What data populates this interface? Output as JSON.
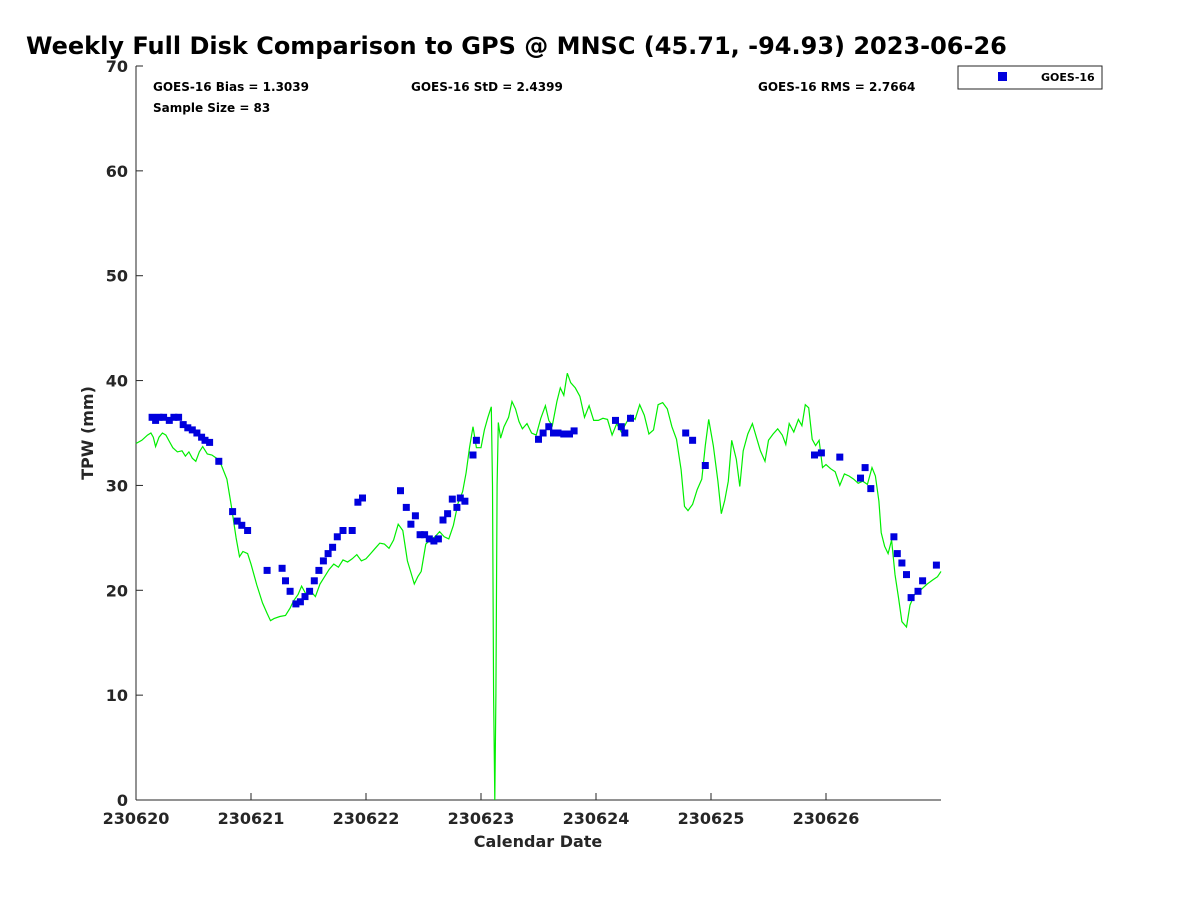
{
  "chart_data": {
    "type": "scatter",
    "title": "Weekly Full Disk Comparison to GPS @ MNSC (45.71, -94.93) 2023-06-26",
    "xlabel": "Calendar Date",
    "ylabel": "TPW (mm)",
    "xlim": [
      0,
      7
    ],
    "ylim": [
      0,
      70
    ],
    "x_ticks": [
      {
        "value": 0,
        "label": "230620"
      },
      {
        "value": 1,
        "label": "230621"
      },
      {
        "value": 2,
        "label": "230622"
      },
      {
        "value": 3,
        "label": "230623"
      },
      {
        "value": 4,
        "label": "230624"
      },
      {
        "value": 5,
        "label": "230625"
      },
      {
        "value": 6,
        "label": "230626"
      }
    ],
    "y_ticks": [
      0,
      10,
      20,
      30,
      40,
      50,
      60,
      70
    ],
    "grid": false,
    "legend": {
      "position": "top-right outside",
      "entries": [
        "GOES-16"
      ]
    },
    "stats": {
      "bias": "GOES-16 Bias = 1.3039",
      "std": "GOES-16 StD = 2.4399",
      "rms": "GOES-16 RMS = 2.7664",
      "sample": "Sample Size = 83"
    },
    "series": [
      {
        "name": "GOES-16",
        "kind": "scatter",
        "marker": "square",
        "color": "#0000dd",
        "points": [
          [
            0.14,
            36.5
          ],
          [
            0.17,
            36.2
          ],
          [
            0.2,
            36.5
          ],
          [
            0.24,
            36.5
          ],
          [
            0.29,
            36.2
          ],
          [
            0.33,
            36.5
          ],
          [
            0.37,
            36.5
          ],
          [
            0.41,
            35.8
          ],
          [
            0.45,
            35.5
          ],
          [
            0.49,
            35.3
          ],
          [
            0.53,
            35.0
          ],
          [
            0.57,
            34.6
          ],
          [
            0.6,
            34.3
          ],
          [
            0.64,
            34.1
          ],
          [
            0.72,
            32.3
          ],
          [
            0.84,
            27.5
          ],
          [
            0.88,
            26.6
          ],
          [
            0.92,
            26.2
          ],
          [
            0.97,
            25.7
          ],
          [
            1.14,
            21.9
          ],
          [
            1.27,
            22.1
          ],
          [
            1.3,
            20.9
          ],
          [
            1.34,
            19.9
          ],
          [
            1.39,
            18.7
          ],
          [
            1.43,
            18.9
          ],
          [
            1.47,
            19.4
          ],
          [
            1.51,
            19.9
          ],
          [
            1.55,
            20.9
          ],
          [
            1.59,
            21.9
          ],
          [
            1.63,
            22.8
          ],
          [
            1.67,
            23.5
          ],
          [
            1.71,
            24.1
          ],
          [
            1.75,
            25.1
          ],
          [
            1.8,
            25.7
          ],
          [
            1.88,
            25.7
          ],
          [
            1.93,
            28.4
          ],
          [
            1.97,
            28.8
          ],
          [
            2.3,
            29.5
          ],
          [
            2.35,
            27.9
          ],
          [
            2.39,
            26.3
          ],
          [
            2.43,
            27.1
          ],
          [
            2.47,
            25.3
          ],
          [
            2.51,
            25.3
          ],
          [
            2.55,
            24.9
          ],
          [
            2.59,
            24.7
          ],
          [
            2.63,
            24.9
          ],
          [
            2.67,
            26.7
          ],
          [
            2.71,
            27.3
          ],
          [
            2.75,
            28.7
          ],
          [
            2.79,
            27.9
          ],
          [
            2.82,
            28.8
          ],
          [
            2.86,
            28.5
          ],
          [
            2.93,
            32.9
          ],
          [
            2.96,
            34.3
          ],
          [
            3.5,
            34.4
          ],
          [
            3.54,
            35.0
          ],
          [
            3.59,
            35.6
          ],
          [
            3.63,
            35.0
          ],
          [
            3.67,
            35.0
          ],
          [
            3.72,
            34.9
          ],
          [
            3.77,
            34.9
          ],
          [
            3.81,
            35.2
          ],
          [
            4.17,
            36.2
          ],
          [
            4.22,
            35.6
          ],
          [
            4.25,
            35.0
          ],
          [
            4.3,
            36.4
          ],
          [
            4.78,
            35.0
          ],
          [
            4.84,
            34.3
          ],
          [
            4.95,
            31.9
          ],
          [
            5.9,
            32.9
          ],
          [
            5.96,
            33.1
          ],
          [
            6.12,
            32.7
          ],
          [
            6.3,
            30.7
          ],
          [
            6.34,
            31.7
          ],
          [
            6.39,
            29.7
          ],
          [
            6.59,
            25.1
          ],
          [
            6.62,
            23.5
          ],
          [
            6.66,
            22.6
          ],
          [
            6.7,
            21.5
          ],
          [
            6.74,
            19.3
          ],
          [
            6.8,
            19.9
          ],
          [
            6.84,
            20.9
          ],
          [
            6.96,
            22.4
          ]
        ]
      },
      {
        "name": "",
        "kind": "line",
        "color": "#00ee00",
        "points": [
          [
            0.0,
            34.0
          ],
          [
            0.05,
            34.3
          ],
          [
            0.1,
            34.8
          ],
          [
            0.13,
            35.0
          ],
          [
            0.15,
            34.6
          ],
          [
            0.17,
            33.7
          ],
          [
            0.2,
            34.6
          ],
          [
            0.23,
            35.0
          ],
          [
            0.26,
            34.8
          ],
          [
            0.29,
            34.2
          ],
          [
            0.32,
            33.6
          ],
          [
            0.36,
            33.2
          ],
          [
            0.4,
            33.3
          ],
          [
            0.43,
            32.8
          ],
          [
            0.46,
            33.2
          ],
          [
            0.49,
            32.6
          ],
          [
            0.52,
            32.3
          ],
          [
            0.55,
            33.2
          ],
          [
            0.58,
            33.7
          ],
          [
            0.62,
            33.0
          ],
          [
            0.66,
            32.9
          ],
          [
            0.7,
            32.6
          ],
          [
            0.74,
            32.0
          ],
          [
            0.79,
            30.6
          ],
          [
            0.83,
            28.0
          ],
          [
            0.87,
            25.0
          ],
          [
            0.9,
            23.2
          ],
          [
            0.93,
            23.7
          ],
          [
            0.97,
            23.5
          ],
          [
            1.0,
            22.5
          ],
          [
            1.05,
            20.5
          ],
          [
            1.1,
            18.8
          ],
          [
            1.14,
            17.8
          ],
          [
            1.17,
            17.1
          ],
          [
            1.2,
            17.3
          ],
          [
            1.25,
            17.5
          ],
          [
            1.3,
            17.6
          ],
          [
            1.34,
            18.3
          ],
          [
            1.37,
            19.0
          ],
          [
            1.41,
            19.6
          ],
          [
            1.44,
            20.4
          ],
          [
            1.48,
            19.6
          ],
          [
            1.52,
            19.9
          ],
          [
            1.56,
            19.4
          ],
          [
            1.6,
            20.6
          ],
          [
            1.64,
            21.3
          ],
          [
            1.68,
            22.0
          ],
          [
            1.72,
            22.5
          ],
          [
            1.76,
            22.2
          ],
          [
            1.8,
            22.9
          ],
          [
            1.84,
            22.7
          ],
          [
            1.88,
            23.0
          ],
          [
            1.92,
            23.4
          ],
          [
            1.96,
            22.8
          ],
          [
            2.0,
            23.0
          ],
          [
            2.04,
            23.5
          ],
          [
            2.08,
            24.0
          ],
          [
            2.12,
            24.5
          ],
          [
            2.16,
            24.4
          ],
          [
            2.2,
            24.0
          ],
          [
            2.24,
            24.8
          ],
          [
            2.28,
            26.3
          ],
          [
            2.32,
            25.7
          ],
          [
            2.36,
            22.8
          ],
          [
            2.39,
            21.7
          ],
          [
            2.42,
            20.6
          ],
          [
            2.45,
            21.3
          ],
          [
            2.48,
            21.8
          ],
          [
            2.52,
            24.4
          ],
          [
            2.56,
            24.8
          ],
          [
            2.6,
            25.1
          ],
          [
            2.64,
            25.6
          ],
          [
            2.68,
            25.1
          ],
          [
            2.72,
            24.9
          ],
          [
            2.76,
            26.2
          ],
          [
            2.8,
            28.3
          ],
          [
            2.84,
            29.4
          ],
          [
            2.87,
            31.2
          ],
          [
            2.9,
            33.6
          ],
          [
            2.93,
            35.6
          ],
          [
            2.96,
            33.6
          ],
          [
            3.0,
            33.6
          ],
          [
            3.03,
            35.3
          ],
          [
            3.06,
            36.5
          ],
          [
            3.09,
            37.5
          ],
          [
            3.1,
            30.0
          ],
          [
            3.11,
            10.0
          ],
          [
            3.12,
            0.0
          ],
          [
            3.13,
            10.0
          ],
          [
            3.14,
            30.0
          ],
          [
            3.15,
            36.0
          ],
          [
            3.17,
            34.5
          ],
          [
            3.2,
            35.6
          ],
          [
            3.24,
            36.5
          ],
          [
            3.27,
            38.0
          ],
          [
            3.3,
            37.3
          ],
          [
            3.33,
            36.1
          ],
          [
            3.36,
            35.4
          ],
          [
            3.4,
            35.9
          ],
          [
            3.44,
            35.0
          ],
          [
            3.48,
            34.8
          ],
          [
            3.52,
            36.4
          ],
          [
            3.56,
            37.6
          ],
          [
            3.59,
            36.2
          ],
          [
            3.62,
            35.7
          ],
          [
            3.66,
            38.0
          ],
          [
            3.69,
            39.3
          ],
          [
            3.72,
            38.6
          ],
          [
            3.75,
            40.7
          ],
          [
            3.78,
            39.8
          ],
          [
            3.82,
            39.3
          ],
          [
            3.86,
            38.5
          ],
          [
            3.9,
            36.5
          ],
          [
            3.94,
            37.6
          ],
          [
            3.98,
            36.2
          ],
          [
            4.02,
            36.2
          ],
          [
            4.06,
            36.4
          ],
          [
            4.1,
            36.3
          ],
          [
            4.14,
            34.8
          ],
          [
            4.18,
            35.9
          ],
          [
            4.22,
            35.1
          ],
          [
            4.26,
            35.9
          ],
          [
            4.3,
            36.7
          ],
          [
            4.34,
            36.3
          ],
          [
            4.38,
            37.7
          ],
          [
            4.42,
            36.7
          ],
          [
            4.46,
            34.9
          ],
          [
            4.5,
            35.3
          ],
          [
            4.54,
            37.7
          ],
          [
            4.58,
            37.9
          ],
          [
            4.62,
            37.3
          ],
          [
            4.66,
            35.6
          ],
          [
            4.7,
            34.4
          ],
          [
            4.74,
            31.5
          ],
          [
            4.77,
            28.0
          ],
          [
            4.8,
            27.6
          ],
          [
            4.84,
            28.2
          ],
          [
            4.88,
            29.6
          ],
          [
            4.92,
            30.6
          ],
          [
            4.95,
            33.8
          ],
          [
            4.98,
            36.3
          ],
          [
            5.02,
            33.8
          ],
          [
            5.06,
            30.4
          ],
          [
            5.09,
            27.3
          ],
          [
            5.12,
            28.6
          ],
          [
            5.15,
            30.4
          ],
          [
            5.18,
            34.3
          ],
          [
            5.22,
            32.5
          ],
          [
            5.25,
            29.9
          ],
          [
            5.28,
            33.3
          ],
          [
            5.32,
            34.9
          ],
          [
            5.36,
            35.9
          ],
          [
            5.4,
            34.4
          ],
          [
            5.43,
            33.3
          ],
          [
            5.47,
            32.3
          ],
          [
            5.5,
            34.3
          ],
          [
            5.54,
            34.9
          ],
          [
            5.58,
            35.4
          ],
          [
            5.62,
            34.8
          ],
          [
            5.65,
            33.9
          ],
          [
            5.68,
            35.9
          ],
          [
            5.72,
            35.1
          ],
          [
            5.76,
            36.3
          ],
          [
            5.79,
            35.7
          ],
          [
            5.82,
            37.7
          ],
          [
            5.85,
            37.4
          ],
          [
            5.88,
            34.4
          ],
          [
            5.91,
            33.8
          ],
          [
            5.94,
            34.3
          ],
          [
            5.97,
            31.7
          ],
          [
            6.0,
            32.0
          ],
          [
            6.04,
            31.6
          ],
          [
            6.08,
            31.3
          ],
          [
            6.12,
            30.0
          ],
          [
            6.16,
            31.1
          ],
          [
            6.2,
            30.9
          ],
          [
            6.24,
            30.6
          ],
          [
            6.28,
            30.2
          ],
          [
            6.32,
            30.4
          ],
          [
            6.36,
            30.1
          ],
          [
            6.4,
            31.7
          ],
          [
            6.43,
            30.9
          ],
          [
            6.46,
            28.5
          ],
          [
            6.48,
            25.5
          ],
          [
            6.51,
            24.2
          ],
          [
            6.54,
            23.5
          ],
          [
            6.57,
            24.8
          ],
          [
            6.6,
            21.5
          ],
          [
            6.63,
            19.3
          ],
          [
            6.66,
            17.0
          ],
          [
            6.7,
            16.5
          ],
          [
            6.73,
            18.6
          ],
          [
            6.77,
            19.6
          ],
          [
            6.8,
            19.8
          ],
          [
            6.84,
            20.2
          ],
          [
            6.88,
            20.6
          ],
          [
            6.93,
            21.0
          ],
          [
            6.97,
            21.3
          ],
          [
            7.0,
            21.8
          ]
        ]
      }
    ]
  }
}
